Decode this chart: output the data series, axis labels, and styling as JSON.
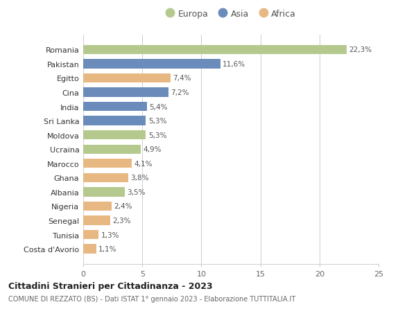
{
  "categories": [
    "Romania",
    "Pakistan",
    "Egitto",
    "Cina",
    "India",
    "Sri Lanka",
    "Moldova",
    "Ucraina",
    "Marocco",
    "Ghana",
    "Albania",
    "Nigeria",
    "Senegal",
    "Tunisia",
    "Costa d'Avorio"
  ],
  "values": [
    22.3,
    11.6,
    7.4,
    7.2,
    5.4,
    5.3,
    5.3,
    4.9,
    4.1,
    3.8,
    3.5,
    2.4,
    2.3,
    1.3,
    1.1
  ],
  "labels": [
    "22,3%",
    "11,6%",
    "7,4%",
    "7,2%",
    "5,4%",
    "5,3%",
    "5,3%",
    "4,9%",
    "4,1%",
    "3,8%",
    "3,5%",
    "2,4%",
    "2,3%",
    "1,3%",
    "1,1%"
  ],
  "continents": [
    "Europa",
    "Asia",
    "Africa",
    "Asia",
    "Asia",
    "Asia",
    "Europa",
    "Europa",
    "Africa",
    "Africa",
    "Europa",
    "Africa",
    "Africa",
    "Africa",
    "Africa"
  ],
  "colors": {
    "Europa": "#b5c98e",
    "Asia": "#6b8cba",
    "Africa": "#e8b882"
  },
  "legend_order": [
    "Europa",
    "Asia",
    "Africa"
  ],
  "title": "Cittadini Stranieri per Cittadinanza - 2023",
  "subtitle": "COMUNE DI REZZATO (BS) - Dati ISTAT 1° gennaio 2023 - Elaborazione TUTTITALIA.IT",
  "xlim": [
    0,
    25
  ],
  "xticks": [
    0,
    5,
    10,
    15,
    20,
    25
  ],
  "background_color": "#ffffff",
  "grid_color": "#cccccc"
}
